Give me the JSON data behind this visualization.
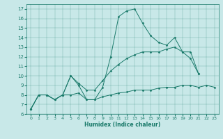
{
  "xlabel": "Humidex (Indice chaleur)",
  "bg_color": "#c8e8e8",
  "line_color": "#1a7a6a",
  "xlim": [
    -0.5,
    23.5
  ],
  "ylim": [
    6,
    17.5
  ],
  "yticks": [
    6,
    7,
    8,
    9,
    10,
    11,
    12,
    13,
    14,
    15,
    16,
    17
  ],
  "xticks": [
    0,
    1,
    2,
    3,
    4,
    5,
    6,
    7,
    8,
    9,
    10,
    11,
    12,
    13,
    14,
    15,
    16,
    17,
    18,
    19,
    20,
    21,
    22,
    23
  ],
  "series": [
    {
      "x": [
        0,
        1,
        2,
        3,
        4,
        5,
        6,
        7,
        8,
        9,
        10,
        11,
        12,
        13,
        14,
        15,
        16,
        17,
        18,
        19,
        20,
        21
      ],
      "y": [
        6.5,
        8.0,
        8.0,
        7.5,
        8.0,
        10.0,
        9.0,
        7.5,
        7.5,
        8.8,
        12.0,
        16.2,
        16.8,
        17.0,
        15.5,
        14.2,
        13.5,
        13.2,
        14.0,
        12.5,
        11.8,
        10.2
      ]
    },
    {
      "x": [
        0,
        1,
        2,
        3,
        4,
        5,
        6,
        7,
        8,
        9,
        10,
        11,
        12,
        13,
        14,
        15,
        16,
        17,
        18,
        19,
        20,
        21
      ],
      "y": [
        6.5,
        8.0,
        8.0,
        7.5,
        8.0,
        10.0,
        9.2,
        8.5,
        8.5,
        9.5,
        10.5,
        11.2,
        11.8,
        12.2,
        12.5,
        12.5,
        12.5,
        12.8,
        13.0,
        12.5,
        12.5,
        10.2
      ]
    },
    {
      "x": [
        0,
        1,
        2,
        3,
        4,
        5,
        6,
        7,
        8,
        9,
        10,
        11,
        12,
        13,
        14,
        15,
        16,
        17,
        18,
        19,
        20,
        21,
        22,
        23
      ],
      "y": [
        6.5,
        8.0,
        8.0,
        7.5,
        8.0,
        8.0,
        8.2,
        7.5,
        7.5,
        7.8,
        8.0,
        8.2,
        8.3,
        8.5,
        8.5,
        8.5,
        8.7,
        8.8,
        8.8,
        9.0,
        9.0,
        8.8,
        9.0,
        8.8
      ]
    }
  ]
}
